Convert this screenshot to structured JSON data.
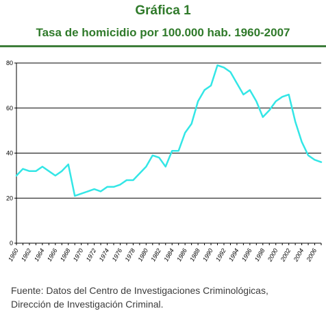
{
  "header": {
    "title": "Gráfica 1",
    "subtitle": "Tasa de homicidio por 100.000 hab. 1960-2007"
  },
  "footer": {
    "source_line1": "Fuente: Datos del Centro de Investigaciones Criminológicas,",
    "source_line2": "Dirección de Investigación Criminal."
  },
  "colors": {
    "title": "#2f7a2a",
    "rule": "#3d7d3a",
    "line": "#33e6e6",
    "grid": "#000000"
  },
  "chart_data": {
    "type": "line",
    "title": "Tasa de homicidio por 100.000 hab. 1960-2007",
    "xlabel": "",
    "ylabel": "",
    "ylim": [
      0,
      80
    ],
    "xlim": [
      1960,
      2007
    ],
    "yticks": [
      0,
      20,
      40,
      60,
      80
    ],
    "xticks": [
      "1960",
      "1962",
      "1964",
      "1966",
      "1968",
      "1970",
      "1972",
      "1974",
      "1976",
      "1978",
      "1980",
      "1982",
      "1984",
      "1986",
      "1988",
      "1990",
      "1992",
      "1994",
      "1996",
      "1998",
      "2000",
      "2002",
      "2004",
      "2006"
    ],
    "grid": "horizontal",
    "legend": "none",
    "series": [
      {
        "x": [
          1960,
          1961,
          1962,
          1963,
          1964,
          1965,
          1966,
          1967,
          1968,
          1969,
          1970,
          1971,
          1972,
          1973,
          1974,
          1975,
          1976,
          1977,
          1978,
          1979,
          1980,
          1981,
          1982,
          1983,
          1984,
          1985,
          1986,
          1987,
          1988,
          1989,
          1990,
          1991,
          1992,
          1993,
          1994,
          1995,
          1996,
          1997,
          1998,
          1999,
          2000,
          2001,
          2002,
          2003,
          2004,
          2005,
          2006,
          2007
        ],
        "values": [
          30,
          33,
          32,
          32,
          34,
          32,
          30,
          32,
          35,
          21,
          22,
          23,
          24,
          23,
          25,
          25,
          26,
          28,
          28,
          31,
          34,
          39,
          38,
          34,
          41,
          41,
          49,
          53,
          63,
          68,
          70,
          79,
          78,
          76,
          71,
          66,
          68,
          63,
          56,
          59,
          63,
          65,
          66,
          54,
          45,
          39,
          37,
          36
        ]
      }
    ]
  }
}
